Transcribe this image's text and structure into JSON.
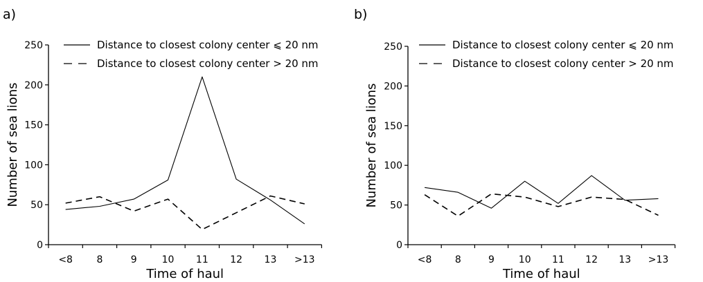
{
  "chart_data": [
    {
      "panel_label": "a)",
      "type": "line",
      "categories": [
        "<8",
        "8",
        "9",
        "10",
        "11",
        "12",
        "13",
        ">13"
      ],
      "xlabel": "Time of haul",
      "ylabel": "Number of sea lions",
      "ylim": [
        0,
        250
      ],
      "yticks": [
        0,
        50,
        100,
        150,
        200,
        250
      ],
      "grid": false,
      "legend_position": "top",
      "series": [
        {
          "name": "Distance to closest colony center ⩽ 20 nm",
          "style": "solid",
          "color": "#000000",
          "values": [
            44,
            48,
            57,
            81,
            210,
            82,
            56,
            26
          ]
        },
        {
          "name": "Distance to closest colony center > 20 nm",
          "style": "dashed",
          "color": "#000000",
          "values": [
            52,
            60,
            42,
            57,
            19,
            40,
            61,
            51
          ]
        }
      ]
    },
    {
      "panel_label": "b)",
      "type": "line",
      "categories": [
        "<8",
        "8",
        "9",
        "10",
        "11",
        "12",
        "13",
        ">13"
      ],
      "xlabel": "Time of haul",
      "ylabel": "Number of sea lions",
      "ylim": [
        0,
        250
      ],
      "yticks": [
        0,
        50,
        100,
        150,
        200,
        250
      ],
      "grid": false,
      "legend_position": "top",
      "series": [
        {
          "name": "Distance to closest colony center ⩽ 20 nm",
          "style": "solid",
          "color": "#000000",
          "values": [
            72,
            66,
            46,
            80,
            52,
            87,
            56,
            58
          ]
        },
        {
          "name": "Distance to closest colony center > 20 nm",
          "style": "dashed",
          "color": "#000000",
          "values": [
            63,
            36,
            64,
            60,
            48,
            60,
            57,
            37
          ]
        }
      ]
    }
  ]
}
